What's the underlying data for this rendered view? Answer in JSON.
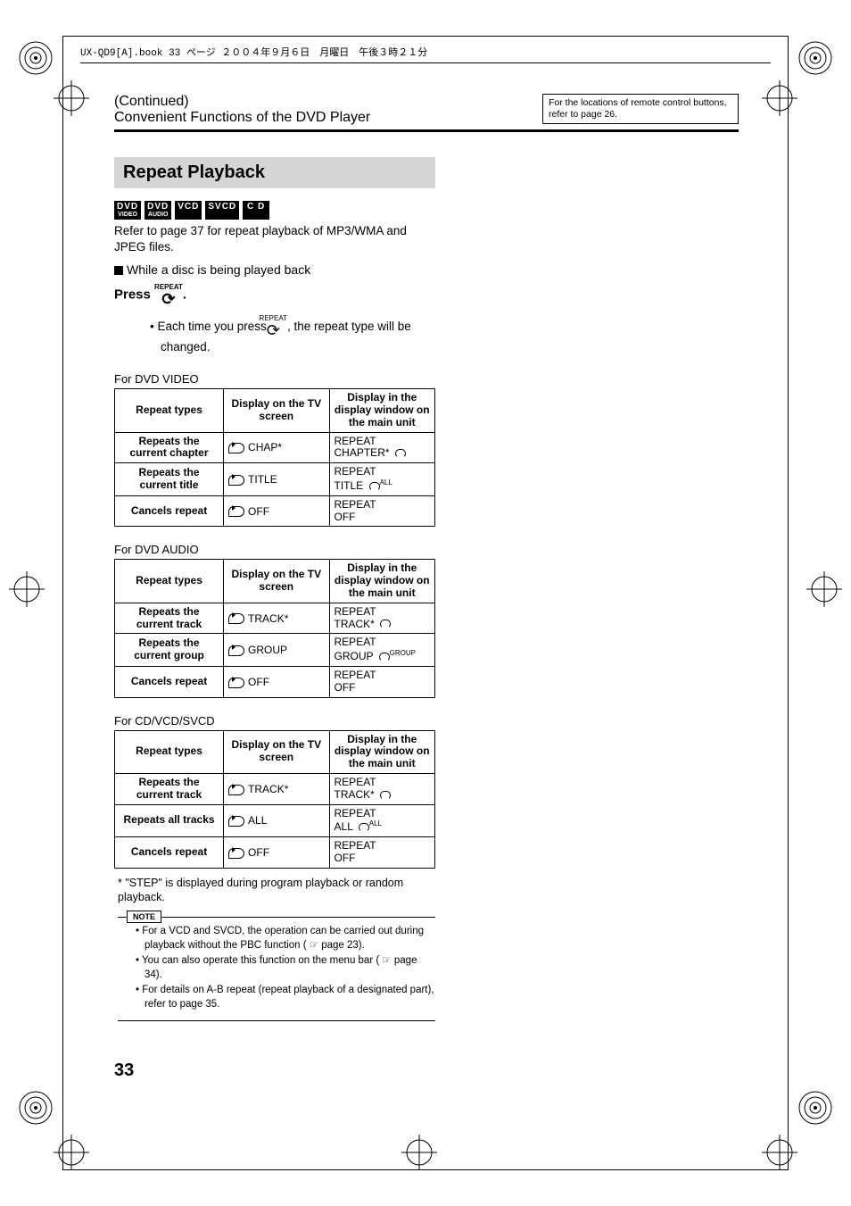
{
  "meta_header": "UX-QD9[A].book  33 ページ  ２００４年９月６日　月曜日　午後３時２１分",
  "header": {
    "continued": "(Continued)",
    "subtitle": "Convenient Functions of the DVD Player",
    "side_note": "For the locations of remote control buttons, refer to page 26."
  },
  "section_title": "Repeat Playback",
  "badges": [
    "DVD VIDEO",
    "DVD AUDIO",
    "VCD",
    "SVCD",
    "C D"
  ],
  "intro": "Refer to page 37 for repeat playback of MP3/WMA and JPEG files.",
  "condition": "While a disc is being played back",
  "press_prefix": "Press ",
  "press_suffix": ".",
  "repeat_icon_label": "REPEAT",
  "bullet_text_a": "Each time you press ",
  "bullet_text_b": ", the repeat type will be changed.",
  "table_headers": {
    "col1": "Repeat types",
    "col2": "Display on the TV screen",
    "col3": "Display in the display window on the main unit"
  },
  "tables": [
    {
      "label": "For DVD VIDEO",
      "rows": [
        {
          "type": "Repeats the current chapter",
          "tv": "CHAP*",
          "mu1": "REPEAT",
          "mu2": "CHAPTER*",
          "icon": "loop"
        },
        {
          "type": "Repeats the current title",
          "tv": "TITLE",
          "mu1": "REPEAT",
          "mu2": "TITLE",
          "icon": "loop",
          "tag": "ALL"
        },
        {
          "type": "Cancels repeat",
          "tv": "OFF",
          "mu1": "REPEAT",
          "mu2": "OFF",
          "icon": ""
        }
      ]
    },
    {
      "label": "For DVD AUDIO",
      "rows": [
        {
          "type": "Repeats the current track",
          "tv": "TRACK*",
          "mu1": "REPEAT",
          "mu2": "TRACK*",
          "icon": "loop"
        },
        {
          "type": "Repeats the current group",
          "tv": "GROUP",
          "mu1": "REPEAT",
          "mu2": "GROUP",
          "icon": "loop",
          "tag": "GROUP"
        },
        {
          "type": "Cancels repeat",
          "tv": "OFF",
          "mu1": "REPEAT",
          "mu2": "OFF",
          "icon": ""
        }
      ]
    },
    {
      "label": "For CD/VCD/SVCD",
      "rows": [
        {
          "type": "Repeats the current track",
          "tv": "TRACK*",
          "mu1": "REPEAT",
          "mu2": "TRACK*",
          "icon": "loop"
        },
        {
          "type": "Repeats all tracks",
          "tv": "ALL",
          "mu1": "REPEAT",
          "mu2": "ALL",
          "icon": "loop",
          "tag": "ALL"
        },
        {
          "type": "Cancels repeat",
          "tv": "OFF",
          "mu1": "REPEAT",
          "mu2": "OFF",
          "icon": ""
        }
      ]
    }
  ],
  "footnote": "* \"STEP\" is displayed during program playback or random playback.",
  "note_label": "NOTE",
  "notes": [
    "For a VCD and SVCD, the operation can be carried out during playback without the PBC function ( ☞ page 23).",
    "You can also operate this function on the menu bar ( ☞ page 34).",
    "For details on A-B repeat (repeat playback of a designated part), refer to page 35."
  ],
  "page_number": "33",
  "colors": {
    "heading_bg": "#d6d6d6",
    "text": "#000000",
    "bg": "#ffffff"
  }
}
